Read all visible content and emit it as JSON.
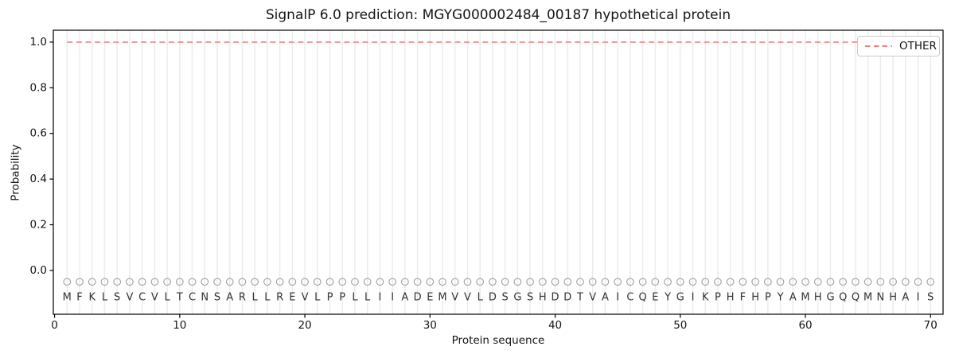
{
  "figure": {
    "title": "SignalP 6.0 prediction: MGYG000002484_00187 hypothetical protein",
    "x_axis_label": "Protein sequence",
    "y_axis_label": "Probability",
    "legend": {
      "label": "OTHER"
    }
  },
  "chart_data": {
    "type": "line",
    "title": "SignalP 6.0 prediction: MGYG000002484_00187 hypothetical protein",
    "xlabel": "Protein sequence",
    "ylabel": "Probability",
    "xlim": [
      -0.1,
      71.0
    ],
    "ylim": [
      -0.192,
      1.052
    ],
    "xticks": [
      0,
      10,
      20,
      30,
      40,
      50,
      60,
      70
    ],
    "yticks": [
      0.0,
      0.2,
      0.4,
      0.6,
      0.8,
      1.0
    ],
    "grid": {
      "vertical_per_residue": true,
      "horizontal": false
    },
    "legend": {
      "position": "upper right",
      "entries": [
        {
          "label": "OTHER",
          "color": "#f08080",
          "linestyle": "dashed"
        }
      ]
    },
    "sequence": "MFKLSVCVLTCNSARLLREVLPPLLIIADEMVVLDSGSHDDTVAICQEYGIKPHFHPYAMHGQQMNHAIS",
    "sequence_x_start": 1,
    "sequence_y_value": -0.118,
    "residue_marker": {
      "shape": "open-circle",
      "y_value": -0.05,
      "color": "#9e9e9e"
    },
    "series": [
      {
        "name": "OTHER",
        "color": "#f08080",
        "linestyle": "dashed",
        "x_start": 1,
        "values": [
          1,
          1,
          1,
          1,
          1,
          1,
          1,
          1,
          1,
          1,
          1,
          1,
          1,
          1,
          1,
          1,
          1,
          1,
          1,
          1,
          1,
          1,
          1,
          1,
          1,
          1,
          1,
          1,
          1,
          1,
          1,
          1,
          1,
          1,
          1,
          1,
          1,
          1,
          1,
          1,
          1,
          1,
          1,
          1,
          1,
          1,
          1,
          1,
          1,
          1,
          1,
          1,
          1,
          1,
          1,
          1,
          1,
          1,
          1,
          1,
          1,
          1,
          1,
          1,
          1,
          1,
          1,
          1,
          1,
          1
        ]
      }
    ],
    "colors": {
      "frame": "#000000",
      "grid": "#ececec",
      "tick_text": "#151515",
      "sequence_letters": "#333333"
    }
  }
}
